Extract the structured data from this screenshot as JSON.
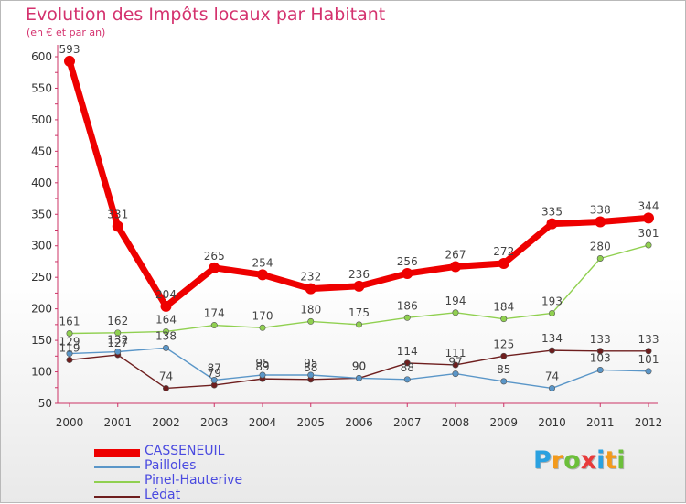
{
  "title": "Evolution des Impôts locaux par Habitant",
  "subtitle": "(en € et par an)",
  "brand": "Proxiti",
  "chart_data": {
    "type": "line",
    "title": "Evolution des Impôts locaux par Habitant",
    "subtitle": "(en € et par an)",
    "xlabel": "",
    "ylabel": "",
    "ylim": [
      50,
      600
    ],
    "yticks": [
      50,
      100,
      150,
      200,
      250,
      300,
      350,
      400,
      450,
      500,
      550,
      600
    ],
    "categories": [
      "2000",
      "2001",
      "2002",
      "2003",
      "2004",
      "2005",
      "2006",
      "2007",
      "2008",
      "2009",
      "2010",
      "2011",
      "2012"
    ],
    "legend_position": "bottom-left",
    "series": [
      {
        "name": "CASSENEUIL",
        "color": "#ee0000",
        "values": [
          593,
          331,
          204,
          265,
          254,
          232,
          236,
          256,
          267,
          272,
          335,
          338,
          344
        ]
      },
      {
        "name": "Pailloles",
        "color": "#5a96c8",
        "values": [
          129,
          132,
          138,
          87,
          95,
          95,
          90,
          88,
          97,
          85,
          74,
          103,
          101
        ]
      },
      {
        "name": "Pinel-Hauterive",
        "color": "#90d050",
        "values": [
          161,
          162,
          164,
          174,
          170,
          180,
          175,
          186,
          194,
          184,
          193,
          280,
          301
        ]
      },
      {
        "name": "Lédat",
        "color": "#6e1e1e",
        "values": [
          119,
          127,
          74,
          79,
          89,
          88,
          90,
          114,
          111,
          125,
          134,
          133,
          133
        ]
      }
    ]
  }
}
